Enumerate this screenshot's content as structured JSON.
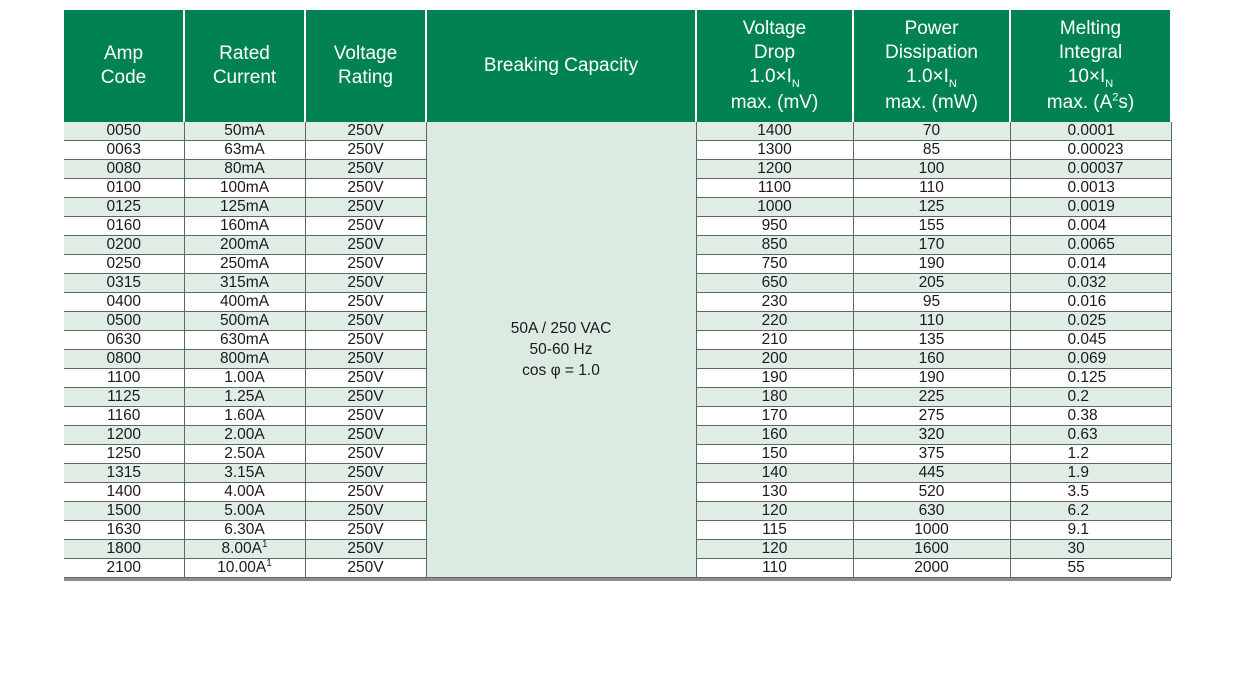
{
  "headers": {
    "amp_code": [
      "Amp",
      "Code"
    ],
    "rated_current": [
      "Rated",
      "Current"
    ],
    "voltage_rating": [
      "Voltage",
      "Rating"
    ],
    "breaking_capacity": "Breaking Capacity",
    "voltage_drop": [
      "Voltage",
      "Drop",
      "1.0×I",
      "N",
      "max.  (mV)"
    ],
    "power_dissipation": [
      "Power",
      "Dissipation",
      "1.0×I",
      "N",
      "max. (mW)"
    ],
    "melting_integral": [
      "Melting",
      "Integral",
      "10×I",
      "N",
      "max. (A",
      "2",
      "s)"
    ]
  },
  "breaking_capacity_value": [
    "50A / 250 VAC",
    "50-60 Hz",
    "cos φ = 1.0"
  ],
  "rows": [
    {
      "code": "0050",
      "current": "50mA",
      "note": "",
      "voltage": "250V",
      "drop": "1400",
      "power": "70",
      "integral": "0.0001"
    },
    {
      "code": "0063",
      "current": "63mA",
      "note": "",
      "voltage": "250V",
      "drop": "1300",
      "power": "85",
      "integral": "0.00023"
    },
    {
      "code": "0080",
      "current": "80mA",
      "note": "",
      "voltage": "250V",
      "drop": "1200",
      "power": "100",
      "integral": "0.00037"
    },
    {
      "code": "0100",
      "current": "100mA",
      "note": "",
      "voltage": "250V",
      "drop": "1100",
      "power": "110",
      "integral": "0.0013"
    },
    {
      "code": "0125",
      "current": "125mA",
      "note": "",
      "voltage": "250V",
      "drop": "1000",
      "power": "125",
      "integral": "0.0019"
    },
    {
      "code": "0160",
      "current": "160mA",
      "note": "",
      "voltage": "250V",
      "drop": "950",
      "power": "155",
      "integral": "0.004"
    },
    {
      "code": "0200",
      "current": "200mA",
      "note": "",
      "voltage": "250V",
      "drop": "850",
      "power": "170",
      "integral": "0.0065"
    },
    {
      "code": "0250",
      "current": "250mA",
      "note": "",
      "voltage": "250V",
      "drop": "750",
      "power": "190",
      "integral": "0.014"
    },
    {
      "code": "0315",
      "current": "315mA",
      "note": "",
      "voltage": "250V",
      "drop": "650",
      "power": "205",
      "integral": "0.032"
    },
    {
      "code": "0400",
      "current": "400mA",
      "note": "",
      "voltage": "250V",
      "drop": "230",
      "power": "95",
      "integral": "0.016"
    },
    {
      "code": "0500",
      "current": "500mA",
      "note": "",
      "voltage": "250V",
      "drop": "220",
      "power": "110",
      "integral": "0.025"
    },
    {
      "code": "0630",
      "current": "630mA",
      "note": "",
      "voltage": "250V",
      "drop": "210",
      "power": "135",
      "integral": "0.045"
    },
    {
      "code": "0800",
      "current": "800mA",
      "note": "",
      "voltage": "250V",
      "drop": "200",
      "power": "160",
      "integral": "0.069"
    },
    {
      "code": "1100",
      "current": "1.00A",
      "note": "",
      "voltage": "250V",
      "drop": "190",
      "power": "190",
      "integral": "0.125"
    },
    {
      "code": "1125",
      "current": "1.25A",
      "note": "",
      "voltage": "250V",
      "drop": "180",
      "power": "225",
      "integral": "0.2"
    },
    {
      "code": "1160",
      "current": "1.60A",
      "note": "",
      "voltage": "250V",
      "drop": "170",
      "power": "275",
      "integral": "0.38"
    },
    {
      "code": "1200",
      "current": "2.00A",
      "note": "",
      "voltage": "250V",
      "drop": "160",
      "power": "320",
      "integral": "0.63"
    },
    {
      "code": "1250",
      "current": "2.50A",
      "note": "",
      "voltage": "250V",
      "drop": "150",
      "power": "375",
      "integral": "1.2"
    },
    {
      "code": "1315",
      "current": "3.15A",
      "note": "",
      "voltage": "250V",
      "drop": "140",
      "power": "445",
      "integral": "1.9"
    },
    {
      "code": "1400",
      "current": "4.00A",
      "note": "",
      "voltage": "250V",
      "drop": "130",
      "power": "520",
      "integral": "3.5"
    },
    {
      "code": "1500",
      "current": "5.00A",
      "note": "",
      "voltage": "250V",
      "drop": "120",
      "power": "630",
      "integral": "6.2"
    },
    {
      "code": "1630",
      "current": "6.30A",
      "note": "",
      "voltage": "250V",
      "drop": "115",
      "power": "1000",
      "integral": "9.1"
    },
    {
      "code": "1800",
      "current": "8.00A",
      "note": "1",
      "voltage": "250V",
      "drop": "120",
      "power": "1600",
      "integral": "30"
    },
    {
      "code": "2100",
      "current": "10.00A",
      "note": "1",
      "voltage": "250V",
      "drop": "110",
      "power": "2000",
      "integral": "55"
    }
  ],
  "colors": {
    "header_green": "#008351",
    "row_tint": "#e0ede5",
    "breaking_cell": "#dcebe1",
    "bottom_rule": "#8c8c8c"
  }
}
